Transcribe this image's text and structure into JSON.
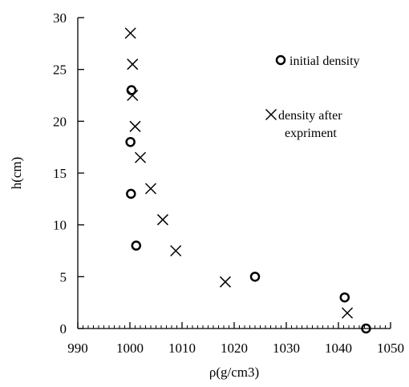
{
  "chart_data": {
    "type": "scatter",
    "xlabel": "ρ(g/cm3)",
    "ylabel": "h(cm)",
    "xlim": [
      990,
      1050
    ],
    "ylim": [
      0,
      30
    ],
    "x_ticks": [
      990,
      1000,
      1010,
      1020,
      1030,
      1040,
      1050
    ],
    "y_ticks": [
      0,
      5,
      10,
      15,
      20,
      25,
      30
    ],
    "grid": false,
    "legend_position": "top-right",
    "series": [
      {
        "name": "initial density",
        "marker": "circle",
        "points": [
          {
            "x": 1000.3,
            "y": 23
          },
          {
            "x": 1000.1,
            "y": 18
          },
          {
            "x": 1000.2,
            "y": 13
          },
          {
            "x": 1001.2,
            "y": 8
          },
          {
            "x": 1024.0,
            "y": 5
          },
          {
            "x": 1041.2,
            "y": 3
          },
          {
            "x": 1045.3,
            "y": 0
          }
        ]
      },
      {
        "name_line1": "density after",
        "name_line2": "expriment",
        "marker": "cross",
        "points": [
          {
            "x": 1000.1,
            "y": 28.5
          },
          {
            "x": 1000.5,
            "y": 25.5
          },
          {
            "x": 1000.5,
            "y": 22.5
          },
          {
            "x": 1001.0,
            "y": 19.5
          },
          {
            "x": 1002.0,
            "y": 16.5
          },
          {
            "x": 1004.0,
            "y": 13.5
          },
          {
            "x": 1006.3,
            "y": 10.5
          },
          {
            "x": 1008.8,
            "y": 7.5
          },
          {
            "x": 1018.3,
            "y": 4.5
          },
          {
            "x": 1041.7,
            "y": 1.5
          }
        ]
      }
    ]
  }
}
